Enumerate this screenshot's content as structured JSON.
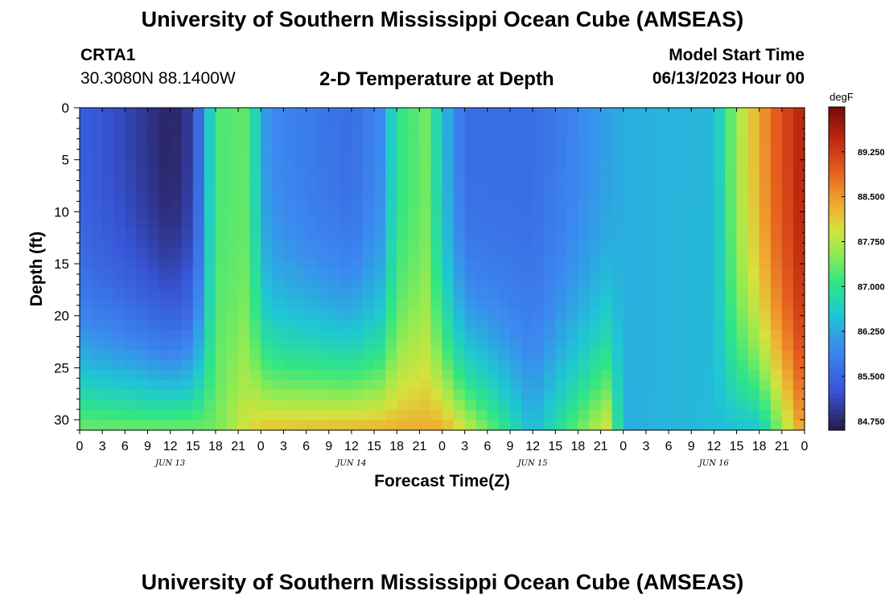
{
  "title": "University of Southern Mississippi Ocean Cube (AMSEAS)",
  "station": {
    "id": "CRTA1",
    "coords": "30.3080N  88.1400W"
  },
  "plot_title": "2-D Temperature at Depth",
  "model_start": {
    "label": "Model Start Time",
    "value": "06/13/2023 Hour 00"
  },
  "chart_data": {
    "type": "heatmap",
    "title": "2-D Temperature at Depth",
    "xlabel": "Forecast Time(Z)",
    "ylabel": "Depth (ft)",
    "x_tick_labels": [
      "0",
      "3",
      "6",
      "9",
      "12",
      "15",
      "18",
      "21",
      "0",
      "3",
      "6",
      "9",
      "12",
      "15",
      "18",
      "21",
      "0",
      "3",
      "6",
      "9",
      "12",
      "15",
      "18",
      "21",
      "0",
      "3",
      "6",
      "9",
      "12",
      "15",
      "18",
      "21",
      "0"
    ],
    "date_labels": [
      "JUN 13",
      "JUN 14",
      "JUN 15",
      "JUN 16"
    ],
    "xlim_hours": [
      0,
      96
    ],
    "ylim": [
      0,
      31
    ],
    "y_ticks": [
      0,
      5,
      10,
      15,
      20,
      25,
      30
    ],
    "y_inverted": true,
    "colorbar": {
      "unit": "degF",
      "range": [
        84.6,
        90.0
      ],
      "ticks": [
        "89.250",
        "88.500",
        "87.750",
        "87.000",
        "86.250",
        "85.500",
        "84.750"
      ]
    },
    "surface_temperature_degF": [
      {
        "hour": 0,
        "value": 85.4
      },
      {
        "hour": 6,
        "value": 85.1
      },
      {
        "hour": 12,
        "value": 84.7
      },
      {
        "hour": 15,
        "value": 85.0
      },
      {
        "hour": 18,
        "value": 87.2
      },
      {
        "hour": 22,
        "value": 87.3
      },
      {
        "hour": 25,
        "value": 86.0
      },
      {
        "hour": 30,
        "value": 85.8
      },
      {
        "hour": 36,
        "value": 85.6
      },
      {
        "hour": 40,
        "value": 86.0
      },
      {
        "hour": 42,
        "value": 87.0
      },
      {
        "hour": 46,
        "value": 87.4
      },
      {
        "hour": 48,
        "value": 86.5
      },
      {
        "hour": 51,
        "value": 85.6
      },
      {
        "hour": 60,
        "value": 85.6
      },
      {
        "hour": 67,
        "value": 86.0
      },
      {
        "hour": 72,
        "value": 86.3
      },
      {
        "hour": 84,
        "value": 86.4
      },
      {
        "hour": 87,
        "value": 87.6
      },
      {
        "hour": 92,
        "value": 88.9
      },
      {
        "hour": 96,
        "value": 89.6
      }
    ],
    "bottom_temperature_degF": [
      {
        "hour": 0,
        "value": 87.4
      },
      {
        "hour": 18,
        "value": 87.4
      },
      {
        "hour": 24,
        "value": 88.2
      },
      {
        "hour": 48,
        "value": 88.4
      },
      {
        "hour": 60,
        "value": 86.4
      },
      {
        "hour": 70,
        "value": 88.0
      },
      {
        "hour": 72,
        "value": 86.3
      },
      {
        "hour": 90,
        "value": 86.5
      },
      {
        "hour": 96,
        "value": 88.6
      }
    ]
  }
}
